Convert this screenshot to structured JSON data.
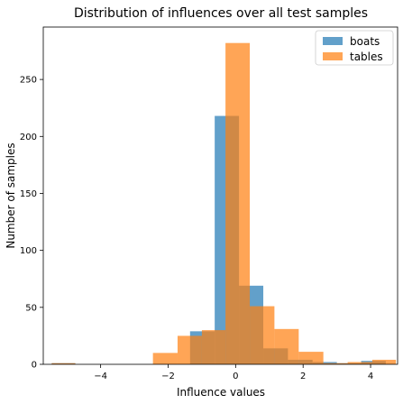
{
  "chart_data": {
    "type": "histogram",
    "title": "Distribution of influences over all test samples",
    "xlabel": "Influence values",
    "ylabel": "Number of samples",
    "xlim": [
      -5.7,
      4.8
    ],
    "ylim": [
      0,
      296
    ],
    "xticks": [
      -4,
      -2,
      0,
      2,
      4
    ],
    "yticks": [
      0,
      50,
      100,
      150,
      200,
      250
    ],
    "legend_position": "top-right",
    "grid": false,
    "series": [
      {
        "name": "boats",
        "color": "#1f77b4",
        "opacity": 0.7,
        "bins": [
          {
            "x0": -5.45,
            "x1": -4.75,
            "count": 1
          },
          {
            "x0": -1.35,
            "x1": -0.62,
            "count": 29
          },
          {
            "x0": -0.62,
            "x1": 0.1,
            "count": 218
          },
          {
            "x0": 0.1,
            "x1": 0.82,
            "count": 69
          },
          {
            "x0": 0.82,
            "x1": 1.55,
            "count": 14
          },
          {
            "x0": 1.55,
            "x1": 2.28,
            "count": 4
          },
          {
            "x0": 2.28,
            "x1": 3.0,
            "count": 2
          },
          {
            "x0": 3.0,
            "x1": 3.72,
            "count": 1
          },
          {
            "x0": 3.72,
            "x1": 4.45,
            "count": 3
          }
        ]
      },
      {
        "name": "tables",
        "color": "#ff7f0e",
        "opacity": 0.7,
        "bins": [
          {
            "x0": -5.45,
            "x1": -4.75,
            "count": 1
          },
          {
            "x0": -2.45,
            "x1": -1.72,
            "count": 10
          },
          {
            "x0": -1.72,
            "x1": -1.0,
            "count": 25
          },
          {
            "x0": -1.0,
            "x1": -0.3,
            "count": 30
          },
          {
            "x0": -0.3,
            "x1": 0.42,
            "count": 282
          },
          {
            "x0": 0.42,
            "x1": 1.15,
            "count": 51
          },
          {
            "x0": 1.15,
            "x1": 1.87,
            "count": 31
          },
          {
            "x0": 1.87,
            "x1": 2.6,
            "count": 11
          },
          {
            "x0": 2.6,
            "x1": 3.32,
            "count": 1
          },
          {
            "x0": 3.32,
            "x1": 4.05,
            "count": 2
          },
          {
            "x0": 4.05,
            "x1": 4.75,
            "count": 4
          }
        ]
      }
    ]
  }
}
